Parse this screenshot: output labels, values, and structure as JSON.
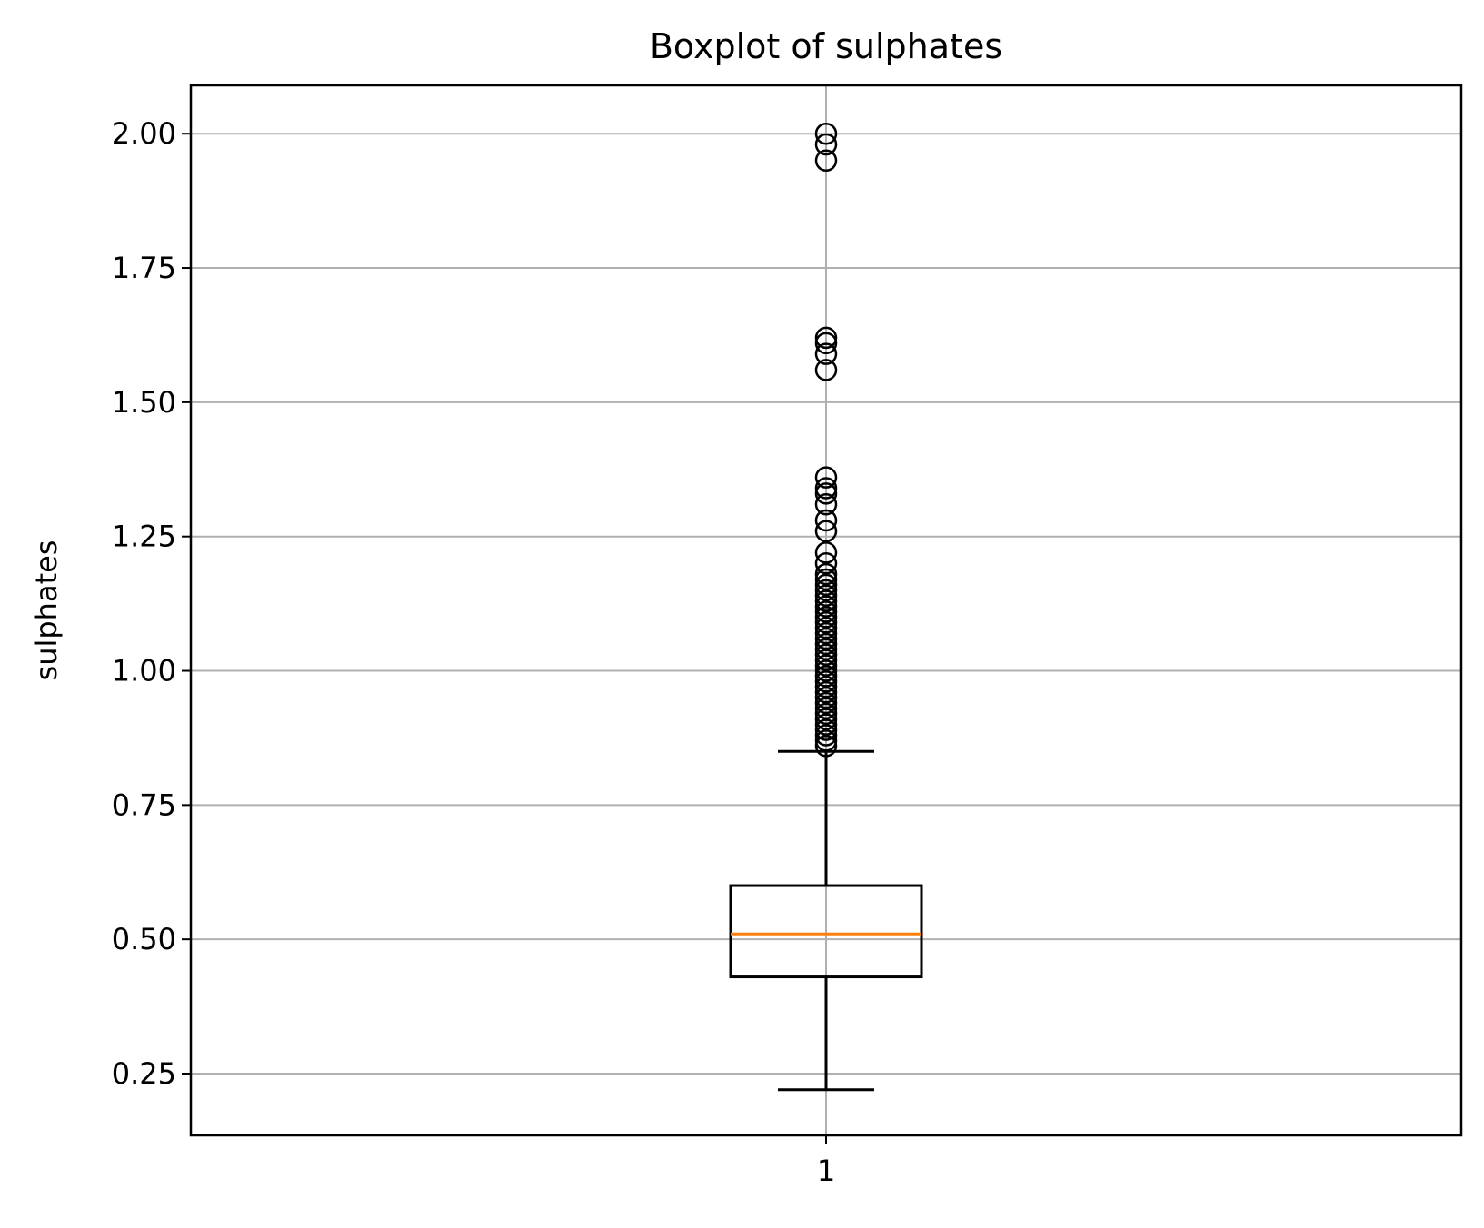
{
  "chart_data": {
    "type": "boxplot",
    "title": "Boxplot of sulphates",
    "xlabel": "",
    "ylabel": "sulphates",
    "categories": [
      "1"
    ],
    "ylim": [
      0.135,
      2.09
    ],
    "yticks": [
      0.25,
      0.5,
      0.75,
      1.0,
      1.25,
      1.5,
      1.75,
      2.0
    ],
    "ytick_labels": [
      "0.25",
      "0.50",
      "0.75",
      "1.00",
      "1.25",
      "1.50",
      "1.75",
      "2.00"
    ],
    "grid": true,
    "boxes": [
      {
        "category": "1",
        "whisker_low": 0.22,
        "q1": 0.43,
        "median": 0.51,
        "q3": 0.6,
        "whisker_high": 0.85,
        "outliers": [
          0.86,
          0.87,
          0.88,
          0.89,
          0.9,
          0.91,
          0.92,
          0.93,
          0.94,
          0.95,
          0.96,
          0.97,
          0.98,
          0.99,
          1.0,
          1.01,
          1.02,
          1.03,
          1.04,
          1.05,
          1.06,
          1.07,
          1.08,
          1.09,
          1.1,
          1.11,
          1.12,
          1.13,
          1.14,
          1.15,
          1.16,
          1.17,
          1.18,
          1.2,
          1.22,
          1.26,
          1.28,
          1.31,
          1.33,
          1.34,
          1.36,
          1.56,
          1.59,
          1.61,
          1.62,
          1.95,
          1.98,
          2.0
        ]
      }
    ],
    "colors": {
      "box": "#000000",
      "median": "#ff7f0e",
      "grid": "#b0b0b0",
      "outlier": "#000000"
    }
  }
}
